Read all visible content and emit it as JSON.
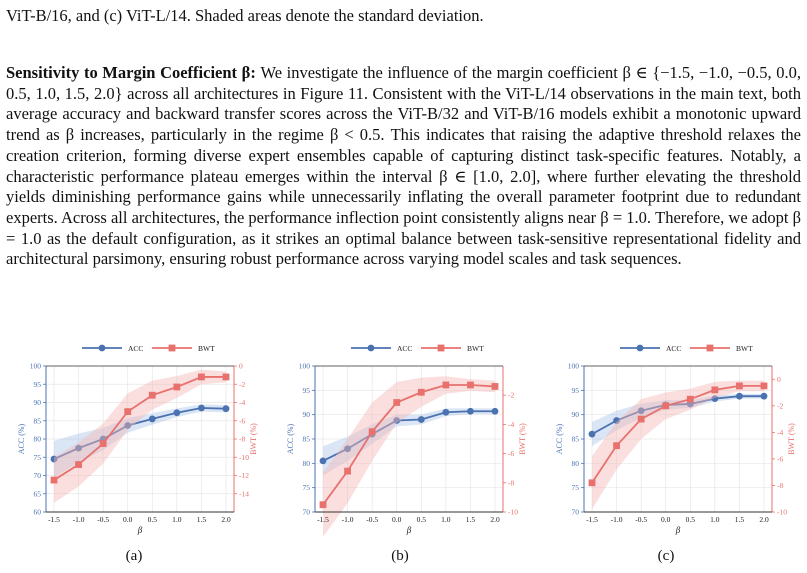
{
  "caption_tail": "ViT-B/16, and (c) ViT-L/14. Shaded areas denote the standard deviation.",
  "paragraph": {
    "heading": "Sensitivity to Margin Coefficient β:",
    "text": "We investigate the influence of the margin coefficient β ∈ {−1.5, −1.0, −0.5, 0.0, 0.5, 1.0, 1.5, 2.0} across all architectures in Figure 11. Consistent with the ViT-L/14 observations in the main text, both average accuracy and backward transfer scores across the ViT-B/32 and ViT-B/16 models exhibit a monotonic upward trend as β increases, particularly in the regime β < 0.5. This indicates that raising the adaptive threshold relaxes the creation criterion, forming diverse expert ensembles capable of capturing distinct task-specific features. Notably, a characteristic performance plateau emerges within the interval β ∈ [1.0, 2.0], where further elevating the threshold yields diminishing performance gains while unnecessarily inflating the overall parameter footprint due to redundant experts. Across all architectures, the performance inflection point consistently aligns near β = 1.0. Therefore, we adopt β = 1.0 as the default configuration, as it strikes an optimal balance between task-sensitive representational fidelity and architectural parsimony, ensuring robust performance across varying model scales and task sequences."
  },
  "colors": {
    "acc": "#4a72b0",
    "bwt": "#e8716e",
    "acc_band": "#aec6e8",
    "bwt_band": "#f4b8b6"
  },
  "chart_data": [
    {
      "type": "line",
      "label": "(a)",
      "x": [
        -1.5,
        -1.0,
        -0.5,
        0.0,
        0.5,
        1.0,
        1.5,
        2.0
      ],
      "x_ticks": [
        "-1.5",
        "-1.0",
        "-0.5",
        "0.0",
        "0.5",
        "1.0",
        "1.5",
        "2.0"
      ],
      "xlabel": "β",
      "ylabel": "ACC (%)",
      "ylabel_right": "BWT (%)",
      "ylim": [
        60,
        100
      ],
      "y_ticks": [
        60,
        65,
        70,
        75,
        80,
        85,
        90,
        95,
        100
      ],
      "ylim_right": [
        -16,
        0
      ],
      "y_ticks_right": [
        -14,
        -12,
        -10,
        -8,
        -6,
        -4,
        -2,
        0
      ],
      "legend": [
        "ACC",
        "BWT"
      ],
      "series": [
        {
          "name": "ACC",
          "axis": "left",
          "values": [
            74.5,
            77.5,
            80.0,
            83.7,
            85.5,
            87.2,
            88.5,
            88.3
          ],
          "std": [
            5.0,
            4.0,
            3.0,
            2.0,
            1.6,
            1.2,
            1.0,
            1.0
          ]
        },
        {
          "name": "BWT",
          "axis": "right",
          "values": [
            -12.5,
            -10.8,
            -8.5,
            -5.0,
            -3.2,
            -2.3,
            -1.2,
            -1.2
          ],
          "std": [
            2.5,
            2.4,
            2.2,
            2.0,
            1.6,
            1.2,
            0.8,
            0.6
          ]
        }
      ]
    },
    {
      "type": "line",
      "label": "(b)",
      "x": [
        -1.5,
        -1.0,
        -0.5,
        0.0,
        0.5,
        1.0,
        1.5,
        2.0
      ],
      "x_ticks": [
        "-1.5",
        "-1.0",
        "-0.5",
        "0.0",
        "0.5",
        "1.0",
        "1.5",
        "2.0"
      ],
      "xlabel": "β",
      "ylabel": "ACC (%)",
      "ylabel_right": "BWT (%)",
      "ylim": [
        70,
        100
      ],
      "y_ticks": [
        70,
        75,
        80,
        85,
        90,
        95,
        100
      ],
      "ylim_right": [
        -10,
        0
      ],
      "y_ticks_right": [
        -10,
        -8,
        -6,
        -4,
        -2
      ],
      "legend": [
        "ACC",
        "BWT"
      ],
      "series": [
        {
          "name": "ACC",
          "axis": "left",
          "values": [
            80.5,
            83.0,
            86.0,
            88.8,
            89.0,
            90.5,
            90.7,
            90.7
          ],
          "std": [
            3.0,
            2.5,
            2.0,
            1.2,
            1.0,
            0.8,
            0.6,
            0.6
          ]
        },
        {
          "name": "BWT",
          "axis": "right",
          "values": [
            -9.5,
            -7.2,
            -4.5,
            -2.5,
            -1.8,
            -1.3,
            -1.3,
            -1.4
          ],
          "std": [
            2.2,
            2.2,
            2.0,
            1.4,
            1.0,
            0.6,
            0.4,
            0.4
          ]
        }
      ]
    },
    {
      "type": "line",
      "label": "(c)",
      "x": [
        -1.5,
        -1.0,
        -0.5,
        0.0,
        0.5,
        1.0,
        1.5,
        2.0
      ],
      "x_ticks": [
        "-1.5",
        "-1.0",
        "-0.5",
        "0.0",
        "0.5",
        "1.0",
        "1.5",
        "2.0"
      ],
      "xlabel": "β",
      "ylabel": "ACC (%)",
      "ylabel_right": "BWT (%)",
      "ylim": [
        70,
        100
      ],
      "y_ticks": [
        70,
        75,
        80,
        85,
        90,
        95,
        100
      ],
      "ylim_right": [
        -10,
        1
      ],
      "y_ticks_right": [
        -10,
        -8,
        -6,
        -4,
        -2,
        0
      ],
      "legend": [
        "ACC",
        "BWT"
      ],
      "series": [
        {
          "name": "ACC",
          "axis": "left",
          "values": [
            86.0,
            88.8,
            90.8,
            92.0,
            92.2,
            93.3,
            93.8,
            93.8
          ],
          "std": [
            2.5,
            2.0,
            1.5,
            1.0,
            0.8,
            0.6,
            0.5,
            0.5
          ]
        },
        {
          "name": "BWT",
          "axis": "right",
          "values": [
            -7.8,
            -5.0,
            -3.0,
            -2.0,
            -1.5,
            -0.8,
            -0.5,
            -0.5
          ],
          "std": [
            2.0,
            1.8,
            1.5,
            1.0,
            0.8,
            0.6,
            0.4,
            0.4
          ]
        }
      ]
    }
  ]
}
